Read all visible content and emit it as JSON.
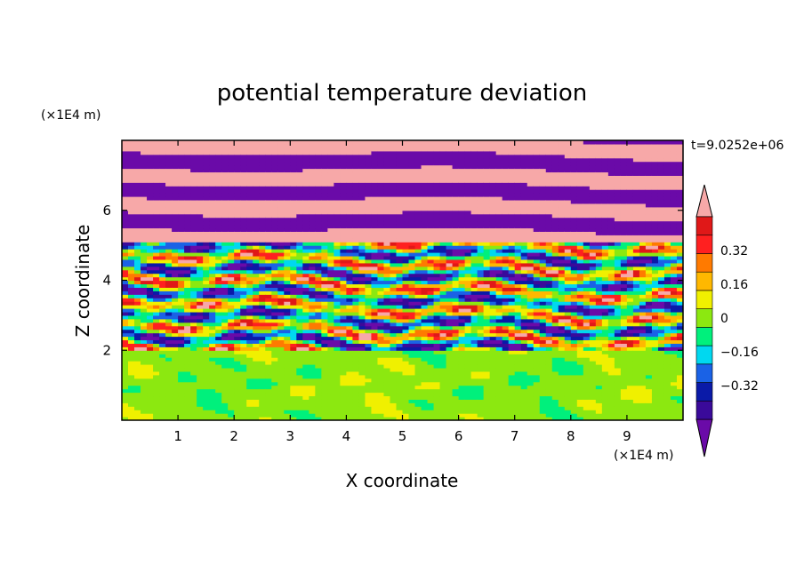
{
  "chart_data": {
    "type": "heatmap",
    "title": "potential temperature deviation",
    "xlabel": "X coordinate",
    "ylabel": "Z coordinate",
    "x_unit": "(×1E4 m)",
    "y_unit": "(×1E4 m)",
    "time_label": "t=9.0252e+06",
    "xlim": [
      0,
      10
    ],
    "ylim": [
      0,
      8
    ],
    "x_ticks": [
      1,
      2,
      3,
      4,
      5,
      6,
      7,
      8,
      9
    ],
    "y_ticks": [
      2,
      4,
      6
    ],
    "colorbar": {
      "levels": [
        -0.48,
        -0.4,
        -0.32,
        -0.24,
        -0.16,
        -0.08,
        0,
        0.08,
        0.16,
        0.24,
        0.32,
        0.4,
        0.48
      ],
      "tick_labels": [
        "0.32",
        "0.16",
        "0",
        "−0.16",
        "−0.32"
      ],
      "tick_values": [
        0.32,
        0.16,
        0,
        -0.16,
        -0.32
      ],
      "colors": [
        "#6a0aa8",
        "#3a0a9a",
        "#0a1aa8",
        "#1a62e6",
        "#00d8f0",
        "#00f07c",
        "#8ce810",
        "#f0f000",
        "#ffb800",
        "#ff7a00",
        "#ff2020",
        "#e01818",
        "#f7a8a8"
      ],
      "extend": "both"
    },
    "regions_description": [
      {
        "z_range": [
          0,
          2
        ],
        "value_range": [
          0,
          0.08
        ],
        "pattern": "mostly green/teal mixed"
      },
      {
        "z_range": [
          2,
          5
        ],
        "value_range": [
          -0.48,
          0.48
        ],
        "pattern": "turbulent mixed layer"
      },
      {
        "z_range": [
          5,
          8
        ],
        "value_range": [
          -0.48,
          0.48
        ],
        "pattern": "alternating purple/pink bands"
      }
    ],
    "grid": false
  }
}
